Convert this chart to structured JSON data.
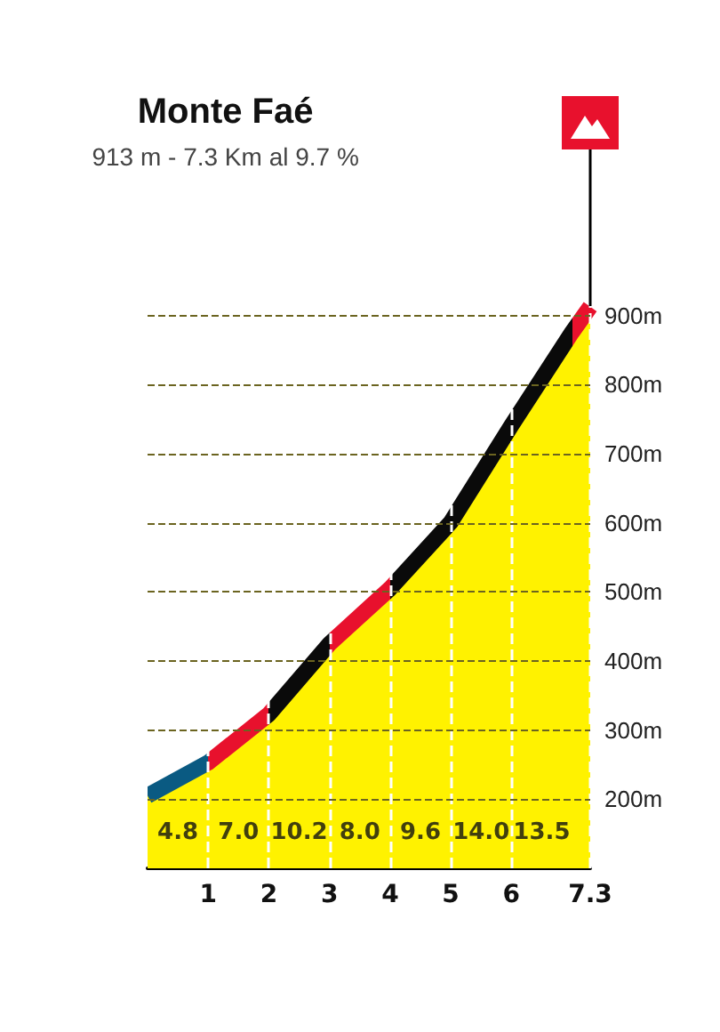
{
  "chart_data": {
    "type": "area",
    "title": "Monte Faé",
    "subtitle": "913 m - 7.3 Km al 9.7 %",
    "x": [
      0,
      1,
      2,
      3,
      4,
      5,
      6,
      7,
      7.3
    ],
    "series": [
      {
        "color": "#fff200",
        "values": [
          205,
          253,
          323,
          425,
          505,
          601,
          741,
          876,
          913
        ],
        "colors": [
          "#0a5a82",
          "#e8112d",
          "#0a0a0a",
          "#e8112d",
          "#0a0a0a",
          "#0a0a0a",
          "#0a0a0a",
          "#e8112d",
          "#e8112d"
        ]
      }
    ],
    "xlim": [
      0,
      7.3
    ],
    "xticks": [
      1,
      2,
      3,
      4,
      5,
      6,
      7.3
    ],
    "ylim": [
      100,
      950
    ],
    "yticks": [
      {
        "value": 200,
        "label": "200m"
      },
      {
        "value": 300,
        "label": "300m"
      },
      {
        "value": 400,
        "label": "400m"
      },
      {
        "value": 500,
        "label": "500m"
      },
      {
        "value": 600,
        "label": "600m"
      },
      {
        "value": 700,
        "label": "700m"
      },
      {
        "value": 800,
        "label": "800m"
      },
      {
        "value": 900,
        "label": "900m"
      }
    ],
    "annotations": [
      "4.8",
      "7.0",
      "10.2",
      "8.0",
      "9.6",
      "14.0",
      "13.5"
    ],
    "grid": true,
    "line_style": "solid",
    "marker": "none"
  }
}
